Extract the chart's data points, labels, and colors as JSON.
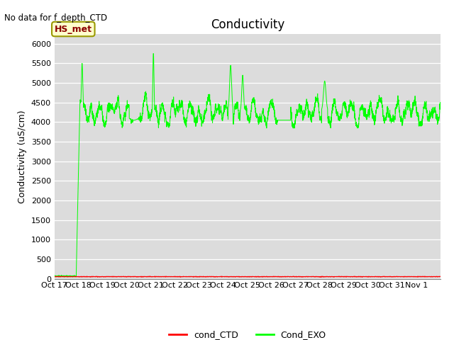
{
  "title": "Conductivity",
  "ylabel": "Conductivity (uS/cm)",
  "no_data_text": "No data for f_depth_CTD",
  "hs_met_label": "HS_met",
  "ylim": [
    0,
    6250
  ],
  "yticks": [
    0,
    500,
    1000,
    1500,
    2000,
    2500,
    3000,
    3500,
    4000,
    4500,
    5000,
    5500,
    6000
  ],
  "xtick_labels": [
    "Oct 17",
    "Oct 18",
    "Oct 19",
    "Oct 20",
    "Oct 21",
    "Oct 22",
    "Oct 23",
    "Oct 24",
    "Oct 25",
    "Oct 26",
    "Oct 27",
    "Oct 28",
    "Oct 29",
    "Oct 30",
    "Oct 31",
    "Nov 1"
  ],
  "bg_color": "#dcdcdc",
  "line_exo_color": "#00ff00",
  "line_ctd_color": "#ff0000",
  "legend_labels": [
    "cond_CTD",
    "Cond_EXO"
  ],
  "hs_met_box_color": "#ffffcc",
  "hs_met_border_color": "#999900",
  "title_fontsize": 12,
  "label_fontsize": 9,
  "tick_fontsize": 8
}
